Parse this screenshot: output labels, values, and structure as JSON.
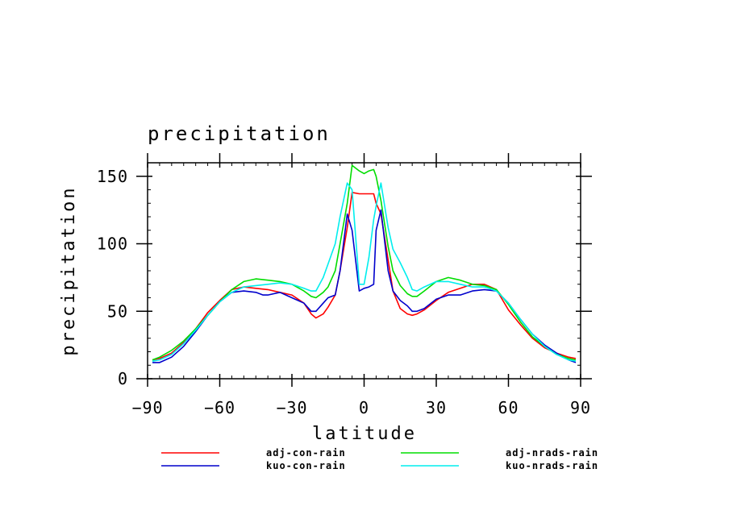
{
  "chart_data": {
    "type": "line",
    "title": "precipitation",
    "xlabel": "latitude",
    "ylabel": "precipitation",
    "xlim": [
      -90,
      90
    ],
    "ylim": [
      0,
      160
    ],
    "xticks": [
      {
        "value": -90,
        "label": "−90"
      },
      {
        "value": -60,
        "label": "−60"
      },
      {
        "value": -30,
        "label": "−30"
      },
      {
        "value": 0,
        "label": "0"
      },
      {
        "value": 30,
        "label": "30"
      },
      {
        "value": 60,
        "label": "60"
      },
      {
        "value": 90,
        "label": "90"
      }
    ],
    "yticks": [
      {
        "value": 0,
        "label": "0"
      },
      {
        "value": 50,
        "label": "50"
      },
      {
        "value": 100,
        "label": "100"
      },
      {
        "value": 150,
        "label": "150"
      }
    ],
    "grid": false,
    "legend_position": "bottom",
    "series": [
      {
        "name": "adj-con-rain",
        "color": "#ff0000",
        "x": [
          -88,
          -85,
          -80,
          -75,
          -70,
          -65,
          -60,
          -55,
          -50,
          -45,
          -40,
          -35,
          -30,
          -25,
          -22,
          -20,
          -17,
          -15,
          -12,
          -10,
          -7,
          -5,
          -2,
          0,
          2,
          4,
          5,
          7,
          10,
          12,
          15,
          18,
          20,
          22,
          25,
          30,
          35,
          40,
          45,
          50,
          55,
          60,
          65,
          70,
          75,
          80,
          85,
          88
        ],
        "y": [
          14,
          15,
          19,
          27,
          37,
          49,
          58,
          66,
          68,
          67,
          66,
          64,
          62,
          56,
          48,
          45,
          48,
          53,
          62,
          80,
          112,
          138,
          137,
          137,
          137,
          137,
          130,
          122,
          88,
          65,
          52,
          48,
          47,
          48,
          51,
          58,
          64,
          67,
          70,
          70,
          66,
          51,
          40,
          30,
          23,
          19,
          16,
          15
        ]
      },
      {
        "name": "kuo-con-rain",
        "color": "#0000cc",
        "x": [
          -88,
          -85,
          -80,
          -75,
          -70,
          -65,
          -60,
          -55,
          -50,
          -45,
          -42,
          -40,
          -35,
          -30,
          -25,
          -22,
          -20,
          -17,
          -15,
          -12,
          -10,
          -7,
          -5,
          -2,
          0,
          2,
          4,
          5,
          7,
          10,
          12,
          15,
          18,
          20,
          22,
          25,
          30,
          35,
          40,
          45,
          50,
          55,
          60,
          65,
          70,
          75,
          80,
          85,
          88
        ],
        "y": [
          12,
          12,
          16,
          24,
          35,
          47,
          57,
          64,
          65,
          64,
          62,
          62,
          64,
          60,
          56,
          50,
          50,
          56,
          60,
          62,
          80,
          122,
          110,
          65,
          67,
          68,
          70,
          110,
          125,
          80,
          65,
          58,
          54,
          50,
          50,
          52,
          59,
          62,
          62,
          65,
          66,
          65,
          56,
          44,
          33,
          25,
          19,
          14,
          12
        ]
      },
      {
        "name": "adj-nrads-rain",
        "color": "#00dd00",
        "x": [
          -88,
          -85,
          -80,
          -75,
          -70,
          -65,
          -60,
          -55,
          -50,
          -45,
          -40,
          -35,
          -30,
          -25,
          -22,
          -20,
          -17,
          -15,
          -12,
          -10,
          -7,
          -5,
          -2,
          0,
          2,
          4,
          5,
          7,
          10,
          12,
          15,
          18,
          20,
          22,
          25,
          30,
          35,
          40,
          45,
          50,
          55,
          60,
          65,
          70,
          75,
          80,
          85,
          88
        ],
        "y": [
          14,
          16,
          21,
          28,
          37,
          47,
          57,
          66,
          72,
          74,
          73,
          72,
          70,
          65,
          61,
          60,
          64,
          68,
          80,
          100,
          130,
          158,
          154,
          152,
          154,
          155,
          150,
          132,
          98,
          80,
          69,
          63,
          61,
          61,
          65,
          72,
          75,
          73,
          70,
          69,
          66,
          55,
          42,
          31,
          24,
          18,
          15,
          14
        ]
      },
      {
        "name": "kuo-nrads-rain",
        "color": "#00eeee",
        "x": [
          -88,
          -85,
          -80,
          -75,
          -70,
          -65,
          -60,
          -55,
          -50,
          -45,
          -40,
          -35,
          -30,
          -25,
          -22,
          -20,
          -17,
          -15,
          -12,
          -10,
          -7,
          -5,
          -2,
          0,
          2,
          4,
          5,
          7,
          10,
          12,
          15,
          18,
          20,
          22,
          25,
          30,
          35,
          40,
          45,
          50,
          55,
          60,
          65,
          70,
          75,
          80,
          85,
          88
        ],
        "y": [
          13,
          14,
          18,
          26,
          36,
          47,
          57,
          64,
          68,
          69,
          70,
          71,
          70,
          67,
          65,
          65,
          75,
          85,
          100,
          120,
          145,
          140,
          70,
          70,
          90,
          118,
          128,
          145,
          112,
          96,
          86,
          75,
          66,
          65,
          68,
          72,
          72,
          70,
          68,
          68,
          65,
          56,
          44,
          33,
          24,
          18,
          14,
          13
        ]
      }
    ]
  }
}
